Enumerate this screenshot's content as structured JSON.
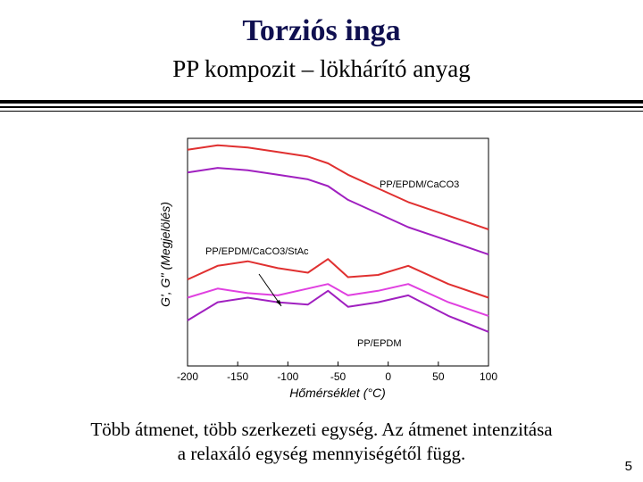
{
  "slide": {
    "title": "Torziós inga",
    "subtitle": "PP kompozit – lökhárító anyag",
    "caption_line1": "Több átmenet, több szerkezeti egység. Az átmenet intenzitása",
    "caption_line2": "a relaxáló egység mennyiségétől függ.",
    "page_number": "5"
  },
  "chart_data": {
    "type": "line",
    "xlabel": "Hőmérséklet (°C)",
    "ylabel": "G', G'' (Megjelölés)",
    "xlim": [
      -200,
      100
    ],
    "x_ticks": [
      "-200",
      "-150",
      "-100",
      "-50",
      "0",
      "50",
      "100"
    ],
    "annotations": [
      {
        "text": "PP/EPDM/CaCO3",
        "points_to": "upper curves"
      },
      {
        "text": "PP/EPDM/CaCO3/StAc",
        "points_to": "middle curves"
      },
      {
        "text": "PP/EPDM",
        "points_to": "lower curves"
      }
    ],
    "series": [
      {
        "values_y": [
          0.95,
          0.97,
          0.96,
          0.94,
          0.92,
          0.89,
          0.84,
          0.78,
          0.72,
          0.66,
          0.6
        ],
        "color": "#e03030"
      },
      {
        "values_y": [
          0.85,
          0.87,
          0.86,
          0.84,
          0.82,
          0.79,
          0.73,
          0.67,
          0.61,
          0.55,
          0.49
        ],
        "color": "#a020c0"
      },
      {
        "values_y": [
          0.38,
          0.44,
          0.46,
          0.43,
          0.41,
          0.47,
          0.39,
          0.4,
          0.44,
          0.36,
          0.3
        ],
        "color": "#e03030"
      },
      {
        "values_y": [
          0.3,
          0.34,
          0.32,
          0.31,
          0.34,
          0.36,
          0.31,
          0.33,
          0.36,
          0.28,
          0.22
        ],
        "color": "#e040e0"
      },
      {
        "values_y": [
          0.2,
          0.28,
          0.3,
          0.28,
          0.27,
          0.33,
          0.26,
          0.28,
          0.31,
          0.22,
          0.15
        ],
        "color": "#a020c0"
      }
    ],
    "x": [
      -200,
      -170,
      -140,
      -110,
      -80,
      -60,
      -40,
      -10,
      20,
      60,
      100
    ]
  }
}
